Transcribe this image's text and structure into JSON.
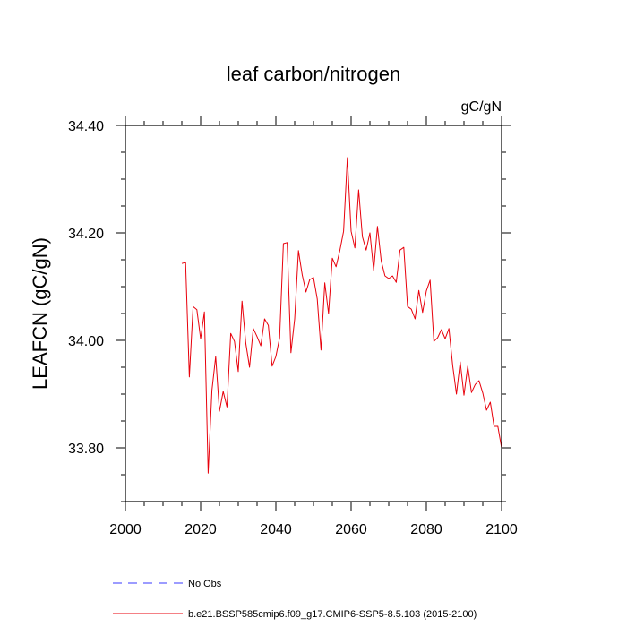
{
  "chart_data": {
    "type": "line",
    "title": "leaf carbon/nitrogen",
    "units": "gC/gN",
    "ylabel": "LEAFCN  (gC/gN)",
    "xlabel": "",
    "xlim": [
      2000,
      2100
    ],
    "ylim": [
      33.7,
      34.4
    ],
    "xticks": [
      2000,
      2020,
      2040,
      2060,
      2080,
      2100
    ],
    "xtick_labels": [
      "2000",
      "2020",
      "2040",
      "2060",
      "2080",
      "2100"
    ],
    "yticks": [
      33.8,
      34.0,
      34.2,
      34.4
    ],
    "ytick_labels": [
      "33.80",
      "34.00",
      "34.20",
      "34.40"
    ],
    "grid": false,
    "legend_position": "bottom",
    "colors": {
      "model": "#e8000b",
      "obs": "#3a3aff"
    },
    "series": [
      {
        "name": "b.e21.BSSP585cmip6.f09_g17.CMIP6-SSP5-8.5.103 (2015-2100)",
        "x": [
          2015,
          2016,
          2017,
          2018,
          2019,
          2020,
          2021,
          2022,
          2023,
          2024,
          2025,
          2026,
          2027,
          2028,
          2029,
          2030,
          2031,
          2032,
          2033,
          2034,
          2035,
          2036,
          2037,
          2038,
          2039,
          2040,
          2041,
          2042,
          2043,
          2044,
          2045,
          2046,
          2047,
          2048,
          2049,
          2050,
          2051,
          2052,
          2053,
          2054,
          2055,
          2056,
          2057,
          2058,
          2059,
          2060,
          2061,
          2062,
          2063,
          2064,
          2065,
          2066,
          2067,
          2068,
          2069,
          2070,
          2071,
          2072,
          2073,
          2074,
          2075,
          2076,
          2077,
          2078,
          2079,
          2080,
          2081,
          2082,
          2083,
          2084,
          2085,
          2086,
          2087,
          2088,
          2089,
          2090,
          2091,
          2092,
          2093,
          2094,
          2095,
          2096,
          2097,
          2098,
          2099,
          2100
        ],
        "values": [
          34.143,
          34.145,
          33.932,
          34.063,
          34.057,
          34.003,
          34.053,
          33.753,
          33.907,
          33.97,
          33.868,
          33.905,
          33.876,
          34.013,
          33.998,
          33.942,
          34.073,
          33.995,
          33.95,
          34.022,
          34.007,
          33.99,
          34.04,
          34.028,
          33.952,
          33.97,
          34.005,
          34.18,
          34.182,
          33.977,
          34.04,
          34.167,
          34.122,
          34.09,
          34.113,
          34.117,
          34.077,
          33.982,
          34.107,
          34.05,
          34.153,
          34.137,
          34.167,
          34.203,
          34.34,
          34.203,
          34.172,
          34.28,
          34.193,
          34.168,
          34.2,
          34.13,
          34.212,
          34.148,
          34.12,
          34.115,
          34.12,
          34.108,
          34.168,
          34.173,
          34.063,
          34.058,
          34.04,
          34.093,
          34.052,
          34.092,
          34.112,
          33.998,
          34.005,
          34.02,
          34.003,
          34.022,
          33.953,
          33.9,
          33.96,
          33.898,
          33.952,
          33.903,
          33.918,
          33.925,
          33.902,
          33.87,
          33.885,
          33.84,
          33.84,
          33.8
        ]
      },
      {
        "name": "No Obs",
        "x": [],
        "values": []
      }
    ]
  }
}
